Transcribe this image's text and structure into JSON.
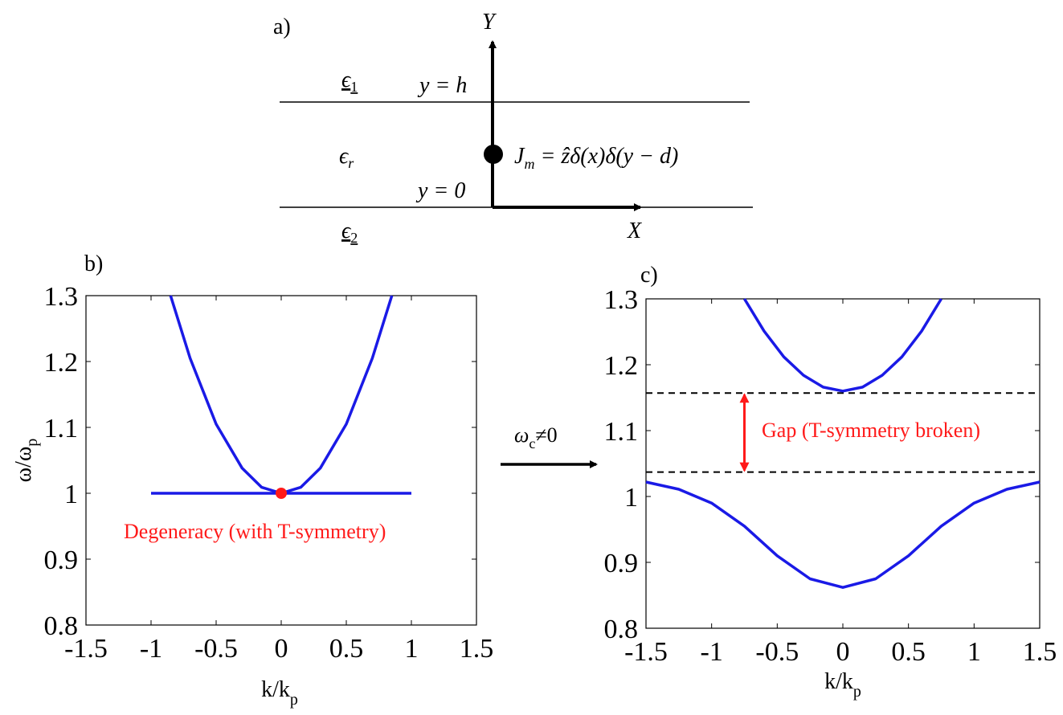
{
  "panel_a": {
    "label": "a)",
    "axis_y": "Y",
    "axis_x": "X",
    "eps1": "ϵ",
    "eps1_sub": "1",
    "epsr": "ϵ",
    "epsr_sub": "r",
    "eps2": "ϵ",
    "eps2_sub": "2",
    "y_h": "y = h",
    "y_0": "y = 0",
    "source": "J",
    "source_sub": "m",
    "source_rhs": " = ẑδ(x)δ(y − d)"
  },
  "arrow_label": {
    "omega": "ω",
    "sub": "c",
    "rel": "≠0"
  },
  "chart_data": [
    {
      "type": "line",
      "label": "b)",
      "xlabel": "k/k",
      "xlabel_sub": "p",
      "ylabel": "ω/ω",
      "ylabel_sub": "p",
      "xlim": [
        -1.5,
        1.5
      ],
      "ylim": [
        0.8,
        1.3
      ],
      "xticks": [
        "-1.5",
        "-1",
        "-0.5",
        "0",
        "0.5",
        "1",
        "1.5"
      ],
      "yticks": [
        "0.8",
        "0.9",
        "1",
        "1.1",
        "1.2",
        "1.3"
      ],
      "series": [
        {
          "color": "#1a1ae6",
          "x": [
            -0.85,
            -0.7,
            -0.5,
            -0.3,
            -0.15,
            0,
            0.15,
            0.3,
            0.5,
            0.7,
            0.85
          ],
          "y": [
            1.3,
            1.205,
            1.105,
            1.038,
            1.009,
            1.0,
            1.009,
            1.038,
            1.105,
            1.205,
            1.3
          ]
        },
        {
          "color": "#1a1ae6",
          "x": [
            -1,
            1
          ],
          "y": [
            1.0,
            1.0
          ]
        }
      ],
      "marker": {
        "x": 0,
        "y": 1.0,
        "color": "#ff1a1a"
      },
      "annotation": "Degeneracy (with T-symmetry)"
    },
    {
      "type": "line",
      "label": "c)",
      "xlabel": "k/k",
      "xlabel_sub": "p",
      "xlim": [
        -1.5,
        1.5
      ],
      "ylim": [
        0.8,
        1.3
      ],
      "xticks": [
        "-1.5",
        "-1",
        "-0.5",
        "0",
        "0.5",
        "1",
        "1.5"
      ],
      "yticks": [
        "0.8",
        "0.9",
        "1",
        "1.1",
        "1.2",
        "1.3"
      ],
      "series": [
        {
          "color": "#1a1ae6",
          "x": [
            -0.75,
            -0.6,
            -0.45,
            -0.3,
            -0.15,
            0,
            0.15,
            0.3,
            0.45,
            0.6,
            0.75
          ],
          "y": [
            1.3,
            1.251,
            1.212,
            1.184,
            1.166,
            1.16,
            1.166,
            1.184,
            1.212,
            1.251,
            1.3
          ]
        },
        {
          "color": "#1a1ae6",
          "x": [
            -1.5,
            -1.25,
            -1.0,
            -0.75,
            -0.5,
            -0.25,
            0,
            0.25,
            0.5,
            0.75,
            1.0,
            1.25,
            1.5
          ],
          "y": [
            1.022,
            1.011,
            0.99,
            0.955,
            0.91,
            0.875,
            0.862,
            0.875,
            0.91,
            0.955,
            0.99,
            1.011,
            1.022
          ]
        }
      ],
      "dashed_lines": [
        1.157,
        1.037
      ],
      "gap_arrow": {
        "x": -0.75,
        "y_top": 1.157,
        "y_bottom": 1.037,
        "color": "#ff1a1a"
      },
      "annotation": "Gap (T-symmetry broken)"
    }
  ]
}
